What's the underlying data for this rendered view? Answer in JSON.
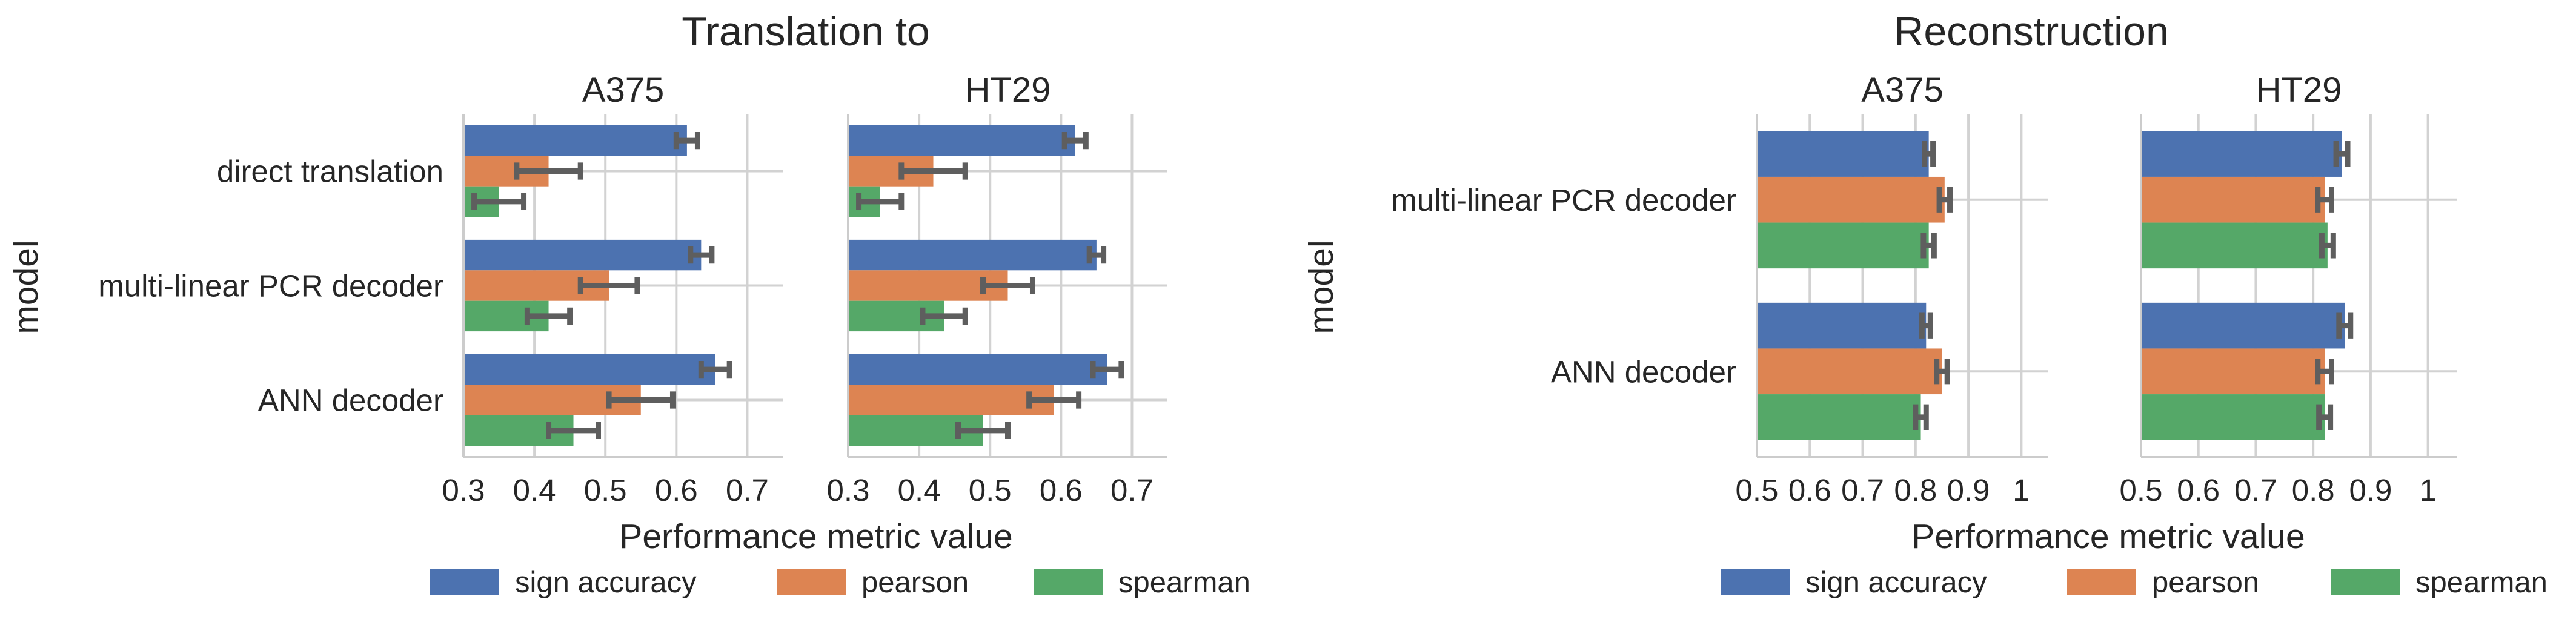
{
  "legend": {
    "entries": [
      {
        "label": "sign accuracy",
        "color": "#4C72B0"
      },
      {
        "label": "pearson",
        "color": "#DD8452"
      },
      {
        "label": "spearman",
        "color": "#55A868"
      }
    ]
  },
  "chart_data": [
    {
      "type": "bar",
      "orientation": "horizontal",
      "title": "Translation to",
      "ylabel": "model",
      "xlabel": "Performance metric value",
      "categories": [
        "direct translation",
        "multi-linear PCR decoder",
        "ANN decoder"
      ],
      "xlim": [
        0.3,
        0.75
      ],
      "xticks": [
        0.3,
        0.4,
        0.5,
        0.6,
        0.7
      ],
      "xtick_labels": [
        "0.3",
        "0.4",
        "0.5",
        "0.6",
        "0.7"
      ],
      "grid": true,
      "legend_position": "bottom",
      "panels": [
        {
          "title": "A375",
          "series": [
            {
              "name": "sign accuracy",
              "values": [
                0.615,
                0.635,
                0.655
              ],
              "error": [
                0.015,
                0.015,
                0.02
              ]
            },
            {
              "name": "pearson",
              "values": [
                0.42,
                0.505,
                0.55
              ],
              "error": [
                0.045,
                0.04,
                0.045
              ]
            },
            {
              "name": "spearman",
              "values": [
                0.35,
                0.42,
                0.455
              ],
              "error": [
                0.035,
                0.03,
                0.035
              ]
            }
          ]
        },
        {
          "title": "HT29",
          "series": [
            {
              "name": "sign accuracy",
              "values": [
                0.62,
                0.65,
                0.665
              ],
              "error": [
                0.015,
                0.01,
                0.02
              ]
            },
            {
              "name": "pearson",
              "values": [
                0.42,
                0.525,
                0.59
              ],
              "error": [
                0.045,
                0.035,
                0.035
              ]
            },
            {
              "name": "spearman",
              "values": [
                0.345,
                0.435,
                0.49
              ],
              "error": [
                0.03,
                0.03,
                0.035
              ]
            }
          ]
        }
      ]
    },
    {
      "type": "bar",
      "orientation": "horizontal",
      "title": "Reconstruction",
      "ylabel": "model",
      "xlabel": "Performance metric value",
      "categories": [
        "multi-linear PCR decoder",
        "ANN decoder"
      ],
      "xlim": [
        0.5,
        1.05
      ],
      "xticks": [
        0.5,
        0.6,
        0.7,
        0.8,
        0.9,
        1.0
      ],
      "xtick_labels": [
        "0.5",
        "0.6",
        "0.7",
        "0.8",
        "0.9",
        "1"
      ],
      "grid": true,
      "legend_position": "bottom",
      "panels": [
        {
          "title": "A375",
          "series": [
            {
              "name": "sign accuracy",
              "values": [
                0.825,
                0.82
              ],
              "error": [
                0.008,
                0.008
              ]
            },
            {
              "name": "pearson",
              "values": [
                0.855,
                0.85
              ],
              "error": [
                0.01,
                0.01
              ]
            },
            {
              "name": "spearman",
              "values": [
                0.825,
                0.81
              ],
              "error": [
                0.01,
                0.01
              ]
            }
          ]
        },
        {
          "title": "HT29",
          "series": [
            {
              "name": "sign accuracy",
              "values": [
                0.85,
                0.855
              ],
              "error": [
                0.01,
                0.01
              ]
            },
            {
              "name": "pearson",
              "values": [
                0.82,
                0.82
              ],
              "error": [
                0.012,
                0.012
              ]
            },
            {
              "name": "spearman",
              "values": [
                0.825,
                0.82
              ],
              "error": [
                0.01,
                0.01
              ]
            }
          ]
        }
      ]
    }
  ]
}
